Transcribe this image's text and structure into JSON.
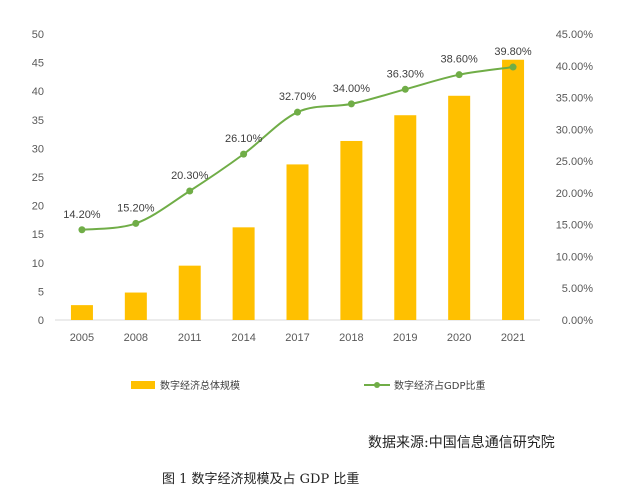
{
  "chart_data": {
    "type": "bar",
    "categories": [
      "2005",
      "2008",
      "2011",
      "2014",
      "2017",
      "2018",
      "2019",
      "2020",
      "2021"
    ],
    "series": [
      {
        "name": "数字经济总体规模",
        "type": "bar",
        "axis": "left",
        "values": [
          2.6,
          4.8,
          9.5,
          16.2,
          27.2,
          31.3,
          35.8,
          39.2,
          45.5
        ],
        "color": "#FFC000"
      },
      {
        "name": "数字经济占GDP比重",
        "type": "line",
        "axis": "right",
        "values": [
          14.2,
          15.2,
          20.3,
          26.1,
          32.7,
          34.0,
          36.3,
          38.6,
          39.8
        ],
        "labels": [
          "14.20%",
          "15.20%",
          "20.30%",
          "26.10%",
          "32.70%",
          "34.00%",
          "36.30%",
          "38.60%",
          "39.80%"
        ],
        "color": "#70AD47"
      }
    ],
    "y_left": {
      "ylim": [
        0,
        50
      ],
      "ticks": [
        "0",
        "5",
        "10",
        "15",
        "20",
        "25",
        "30",
        "35",
        "40",
        "45",
        "50"
      ]
    },
    "y_right": {
      "ylim": [
        0,
        45
      ],
      "ticks": [
        "0.00%",
        "5.00%",
        "10.00%",
        "15.00%",
        "20.00%",
        "25.00%",
        "30.00%",
        "35.00%",
        "40.00%",
        "45.00%"
      ]
    },
    "legend_position": "bottom",
    "gridlines": false
  },
  "source": "数据来源:中国信息通信研究院",
  "caption": "图 1  数字经济规模及占 GDP 比重"
}
